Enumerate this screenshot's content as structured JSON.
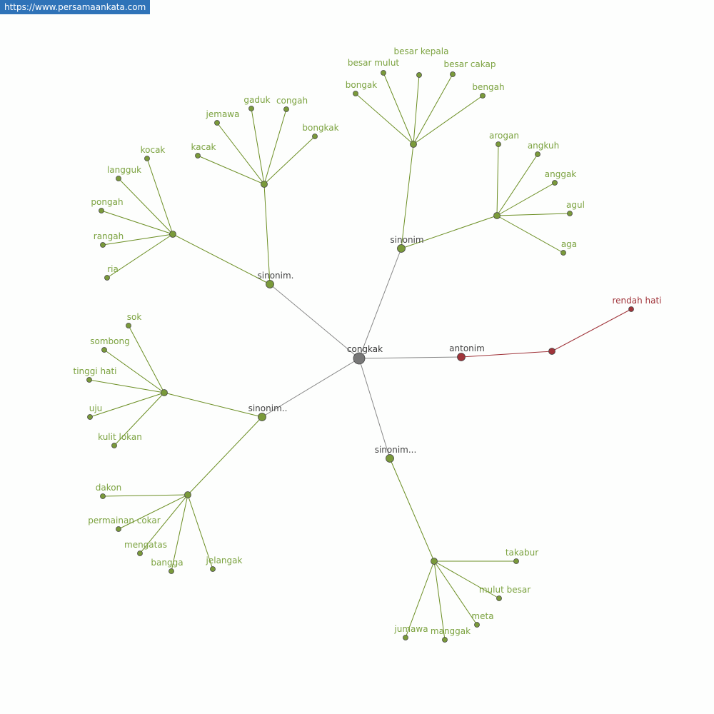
{
  "watermark": "https://www.persamaankata.com",
  "colors": {
    "synonym": "#7a9a3a",
    "synonym_label": "#7ba23f",
    "synonym_edge": "#6b8e23",
    "antonym": "#a0343a",
    "center": "#777777",
    "hub_label": "#444444"
  },
  "graph": {
    "center": "congkak",
    "antonym": {
      "label": "antonim",
      "words": [
        "rendah hati"
      ]
    },
    "synonym_groups": [
      {
        "label": "sinonim",
        "clusters": [
          [
            "bongak",
            "besar mulut",
            "besar kepala",
            "besar cakap",
            "bengah"
          ],
          [
            "arogan",
            "angkuh",
            "anggak",
            "agul",
            "aga"
          ]
        ]
      },
      {
        "label": "sinonim.",
        "clusters": [
          [
            "kacak",
            "jemawa",
            "gaduk",
            "congah",
            "bongkak"
          ],
          [
            "kocak",
            "langguk",
            "pongah",
            "rangah",
            "ria"
          ]
        ]
      },
      {
        "label": "sinonim..",
        "clusters": [
          [
            "sok",
            "sombong",
            "tinggi hati",
            "uju",
            "kulit lokan"
          ],
          [
            "dakon",
            "permainan cokar",
            "mengatas",
            "bangga",
            "jelangak"
          ]
        ]
      },
      {
        "label": "sinonim...",
        "clusters": [
          [
            "takabur",
            "mulut besar",
            "meta",
            "manggak",
            "jumawa"
          ]
        ]
      }
    ]
  }
}
